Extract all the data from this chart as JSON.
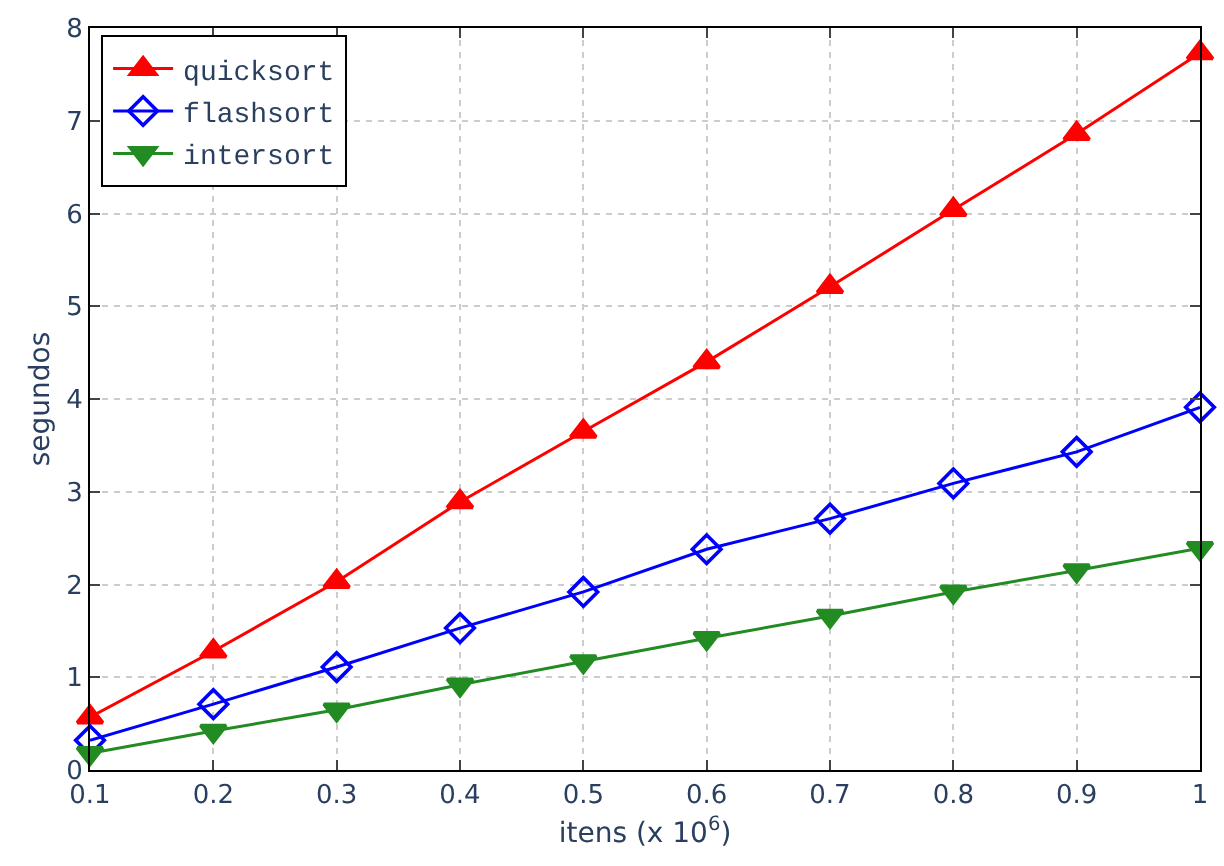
{
  "chart_data": {
    "type": "line",
    "xlabel": "itens (x 10$^{6}$)",
    "ylabel": "segundos",
    "x": [
      0.1,
      0.2,
      0.3,
      0.4,
      0.5,
      0.6,
      0.7,
      0.8,
      0.9,
      1.0
    ],
    "series": [
      {
        "name": "quicksort",
        "color": "#ff0000",
        "marker": "triangle",
        "values": [
          0.57,
          1.28,
          2.03,
          2.89,
          3.65,
          4.4,
          5.21,
          6.04,
          6.86,
          7.73
        ]
      },
      {
        "name": "flashsort",
        "color": "#0000ff",
        "marker": "diamond",
        "values": [
          0.32,
          0.71,
          1.11,
          1.53,
          1.92,
          2.38,
          2.71,
          3.09,
          3.43,
          3.91
        ]
      },
      {
        "name": "intersort",
        "color": "#228b22",
        "marker": "triangle-down",
        "values": [
          0.18,
          0.42,
          0.65,
          0.92,
          1.17,
          1.42,
          1.66,
          1.92,
          2.15,
          2.39
        ]
      }
    ],
    "xlim": [
      0.1,
      1.0
    ],
    "xticks": [
      0.1,
      0.2,
      0.3,
      0.4,
      0.5,
      0.6,
      0.7,
      0.8,
      0.9,
      1
    ],
    "ylim": [
      0,
      8
    ],
    "yticks": [
      0,
      1,
      2,
      3,
      4,
      5,
      6,
      7,
      8
    ],
    "grid": true,
    "legend": "top left",
    "line_style": "solid"
  }
}
